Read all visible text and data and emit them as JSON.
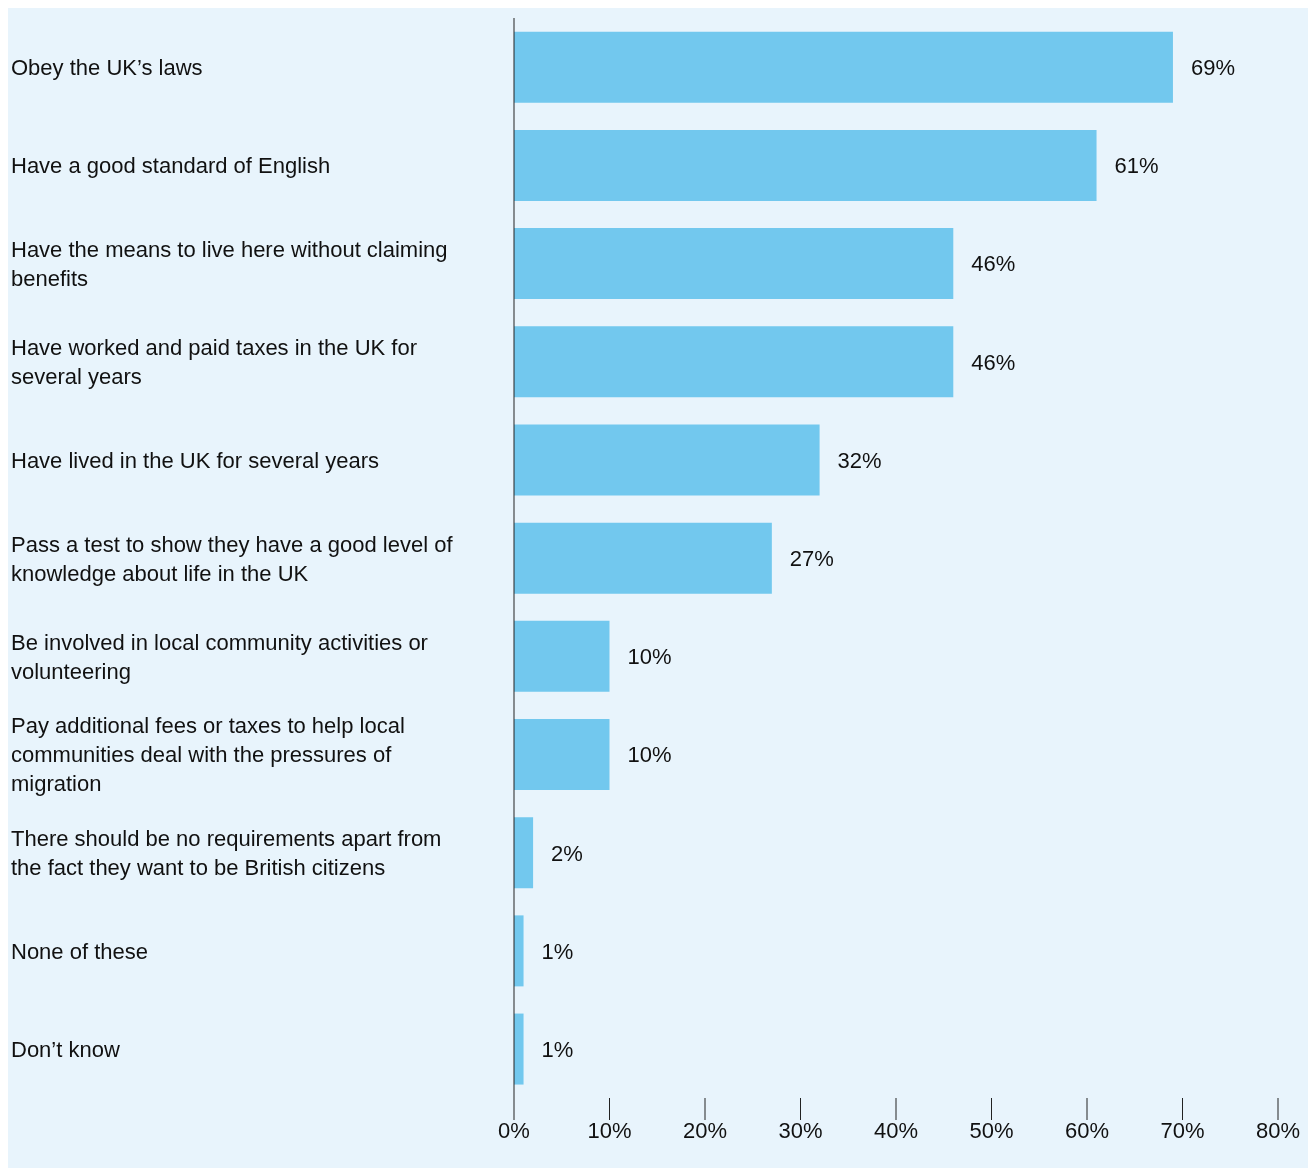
{
  "chart_data": {
    "type": "bar",
    "orientation": "horizontal",
    "categories": [
      "Obey the UK’s laws",
      "Have a good standard of English",
      "Have the means to live here without claiming benefits",
      "Have worked and paid taxes in the UK for several years",
      "Have lived in the UK for several years",
      "Pass a test to show they have a good level of knowledge about life in the UK",
      "Be involved in local community activities or volunteering",
      "Pay additional fees or taxes to help local communities deal with the pressures of migration",
      "There should be no requirements apart from the fact they want to be British citizens",
      "None of these",
      "Don’t know"
    ],
    "values": [
      69,
      61,
      46,
      46,
      32,
      27,
      10,
      10,
      2,
      1,
      1
    ],
    "value_labels": [
      "69%",
      "61%",
      "46%",
      "46%",
      "32%",
      "27%",
      "10%",
      "10%",
      "2%",
      "1%",
      "1%"
    ],
    "color": "#72c8ee",
    "xlim": [
      0,
      80
    ],
    "xticks": [
      {
        "value": 0,
        "label": "0%"
      },
      {
        "value": 10,
        "label": "10%"
      },
      {
        "value": 20,
        "label": "20%"
      },
      {
        "value": 30,
        "label": "30%"
      },
      {
        "value": 40,
        "label": "40%"
      },
      {
        "value": 50,
        "label": "50%"
      },
      {
        "value": 60,
        "label": "60%"
      },
      {
        "value": 70,
        "label": "70%"
      },
      {
        "value": 80,
        "label": "80%"
      }
    ],
    "grid": false,
    "legend": false
  }
}
